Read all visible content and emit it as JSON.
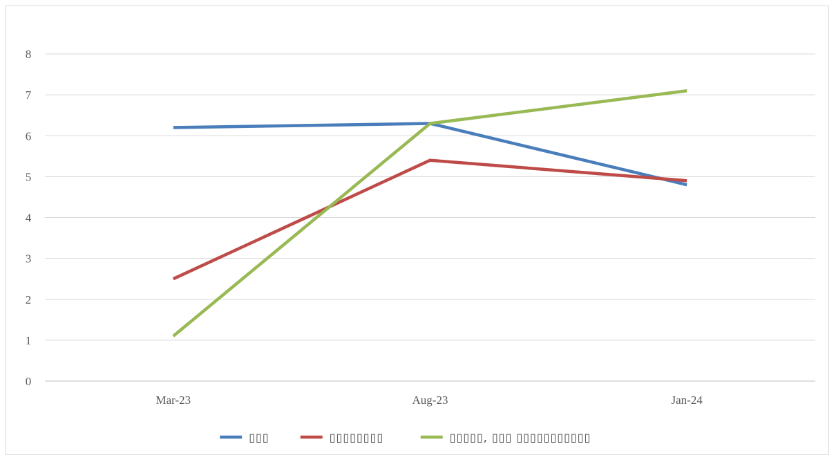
{
  "chart_data": {
    "type": "line",
    "categories": [
      "Mar-23",
      "Aug-23",
      "Jan-24"
    ],
    "ylim": [
      0,
      8
    ],
    "yticks": [
      "0",
      "1",
      "2",
      "3",
      "4",
      "5",
      "6",
      "7",
      "8"
    ],
    "grid": true,
    "legend_position": "bottom",
    "series": [
      {
        "name": "▯▯▯",
        "color": "#4a7ebb",
        "values": [
          6.2,
          6.3,
          4.8
        ]
      },
      {
        "name": "▯▯▯▯▯▯▯▯",
        "color": "#be4b48",
        "values": [
          2.5,
          5.4,
          4.9
        ]
      },
      {
        "name": "▯▯▯▯▯, ▯▯▯ ▯▯▯▯▯▯▯▯▯▯▯",
        "color": "#98b954",
        "values": [
          1.1,
          6.3,
          7.1
        ]
      }
    ]
  }
}
